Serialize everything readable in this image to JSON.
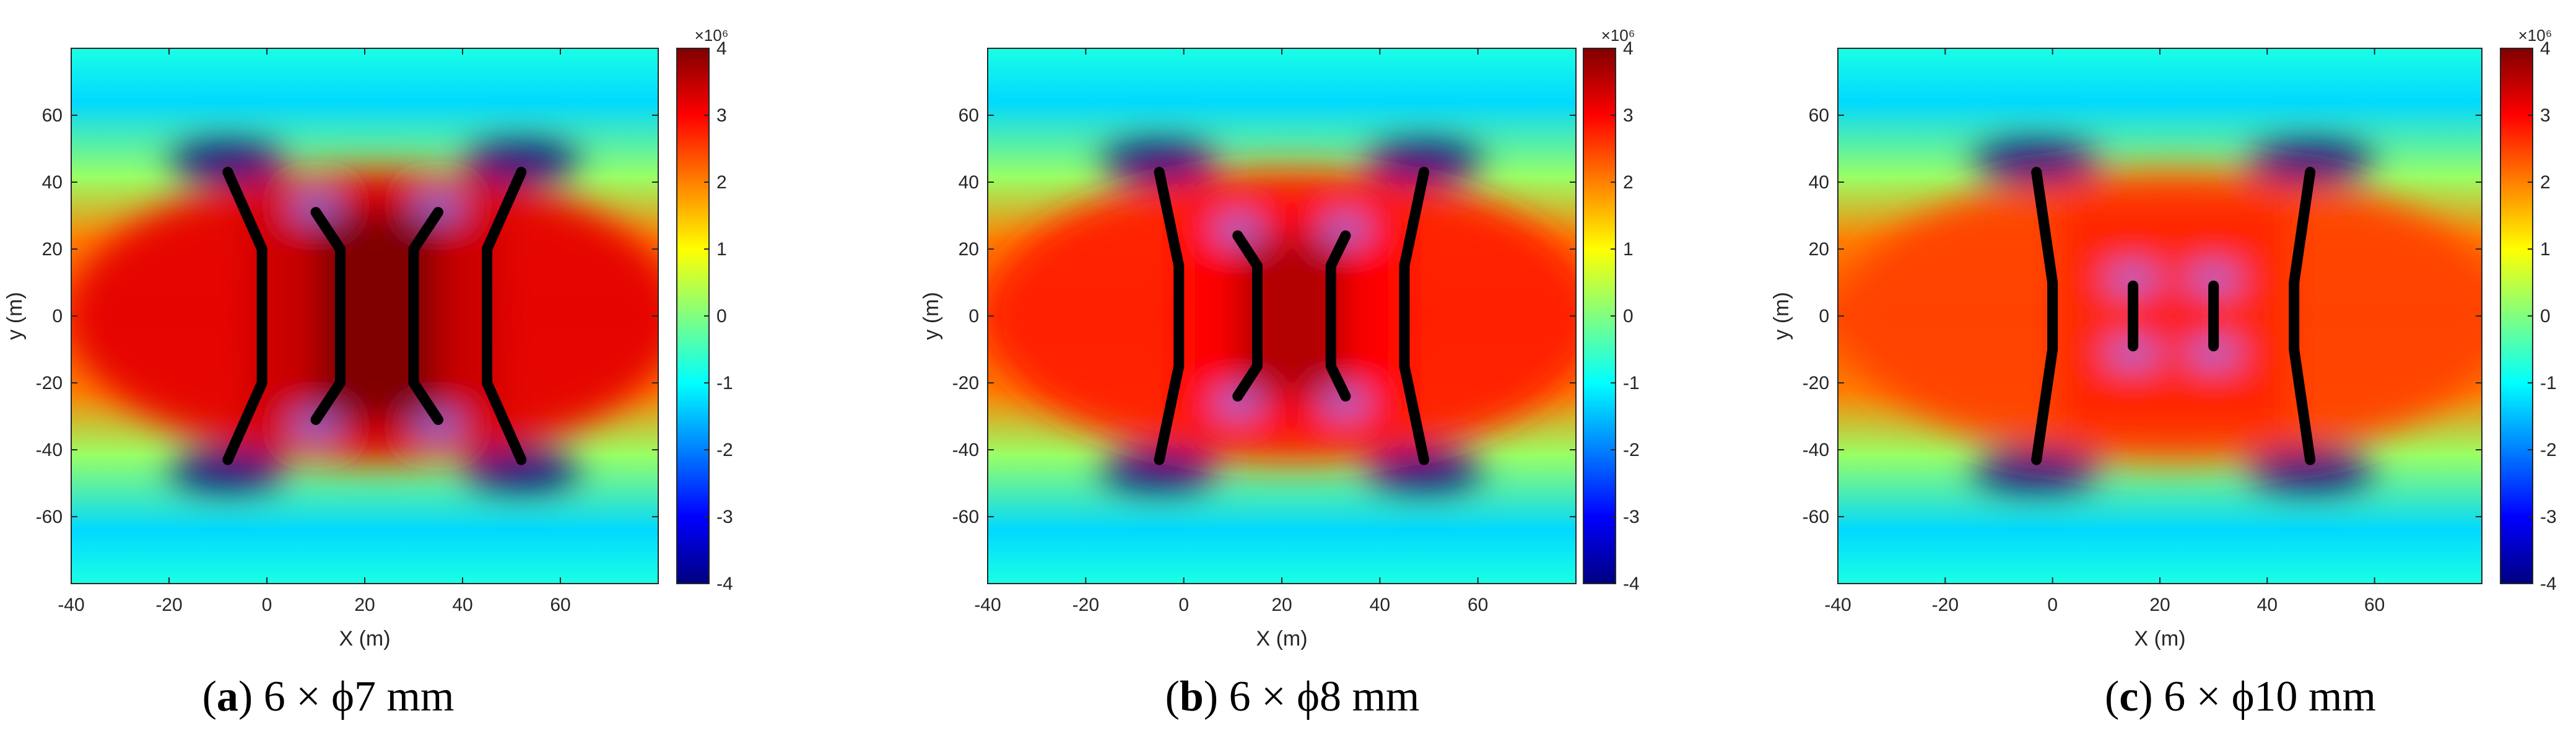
{
  "chart_data": [
    {
      "type": "heatmap",
      "caption_label": "a",
      "caption_text": "6 × ϕ7 mm",
      "xlabel": "X (m)",
      "ylabel": "y (m)",
      "xlim": [
        -40,
        80
      ],
      "ylim": [
        -80,
        80
      ],
      "xticks": [
        -40,
        -20,
        0,
        20,
        40,
        60
      ],
      "yticks": [
        -60,
        -40,
        -20,
        0,
        20,
        40,
        60
      ],
      "colorbar": {
        "range": [
          -4,
          4
        ],
        "ticks": [
          -4,
          -3,
          -2,
          -1,
          0,
          1,
          2,
          3,
          4
        ],
        "exponent_label": "×10⁶",
        "colormap": "jet"
      },
      "field_level_inside_fractures": 4,
      "field_level_outer_region": 3.2,
      "fractures": [
        {
          "name": "outer-left",
          "points": [
            [
              -8,
              43
            ],
            [
              -1,
              20
            ],
            [
              -1,
              -20
            ],
            [
              -8,
              -43
            ]
          ]
        },
        {
          "name": "inner-left",
          "points": [
            [
              10,
              31
            ],
            [
              15,
              20
            ],
            [
              15,
              -20
            ],
            [
              10,
              -31
            ]
          ]
        },
        {
          "name": "inner-right",
          "points": [
            [
              35,
              31
            ],
            [
              30,
              20
            ],
            [
              30,
              -20
            ],
            [
              35,
              -31
            ]
          ]
        },
        {
          "name": "outer-right",
          "points": [
            [
              52,
              43
            ],
            [
              45,
              20
            ],
            [
              45,
              -20
            ],
            [
              52,
              -43
            ]
          ]
        }
      ]
    },
    {
      "type": "heatmap",
      "caption_label": "b",
      "caption_text": "6 × ϕ8 mm",
      "xlabel": "X (m)",
      "ylabel": "y (m)",
      "xlim": [
        -40,
        80
      ],
      "ylim": [
        -80,
        80
      ],
      "xticks": [
        -40,
        -20,
        0,
        20,
        40,
        60
      ],
      "yticks": [
        -60,
        -40,
        -20,
        0,
        20,
        40,
        60
      ],
      "colorbar": {
        "range": [
          -4,
          4
        ],
        "ticks": [
          -4,
          -3,
          -2,
          -1,
          0,
          1,
          2,
          3,
          4
        ],
        "exponent_label": "×10⁶",
        "colormap": "jet"
      },
      "field_level_inside_fractures": 3.6,
      "field_level_outer_region": 2.8,
      "fractures": [
        {
          "name": "outer-left",
          "points": [
            [
              -5,
              43
            ],
            [
              -1,
              15
            ],
            [
              -1,
              -15
            ],
            [
              -5,
              -43
            ]
          ]
        },
        {
          "name": "inner-left",
          "points": [
            [
              11,
              24
            ],
            [
              15,
              15
            ],
            [
              15,
              -15
            ],
            [
              11,
              -24
            ]
          ]
        },
        {
          "name": "inner-right",
          "points": [
            [
              33,
              24
            ],
            [
              30,
              15
            ],
            [
              30,
              -15
            ],
            [
              33,
              -24
            ]
          ]
        },
        {
          "name": "outer-right",
          "points": [
            [
              49,
              43
            ],
            [
              45,
              15
            ],
            [
              45,
              -15
            ],
            [
              49,
              -43
            ]
          ]
        }
      ]
    },
    {
      "type": "heatmap",
      "caption_label": "c",
      "caption_text": "6 × ϕ10 mm",
      "xlabel": "X (m)",
      "ylabel": "y (m)",
      "xlim": [
        -40,
        80
      ],
      "ylim": [
        -80,
        80
      ],
      "xticks": [
        -40,
        -20,
        0,
        20,
        40,
        60
      ],
      "yticks": [
        -60,
        -40,
        -20,
        0,
        20,
        40,
        60
      ],
      "colorbar": {
        "range": [
          -4,
          4
        ],
        "ticks": [
          -4,
          -3,
          -2,
          -1,
          0,
          1,
          2,
          3,
          4
        ],
        "exponent_label": "×10⁶",
        "colormap": "jet"
      },
      "field_level_inside_fractures": 2.8,
      "field_level_outer_region": 2.5,
      "fractures": [
        {
          "name": "outer-left",
          "points": [
            [
              -3,
              43
            ],
            [
              0,
              10
            ],
            [
              0,
              -10
            ],
            [
              -3,
              -43
            ]
          ]
        },
        {
          "name": "inner-left",
          "points": [
            [
              15,
              9
            ],
            [
              15,
              -9
            ]
          ]
        },
        {
          "name": "inner-right",
          "points": [
            [
              30,
              9
            ],
            [
              30,
              -9
            ]
          ]
        },
        {
          "name": "outer-right",
          "points": [
            [
              48,
              43
            ],
            [
              45,
              10
            ],
            [
              45,
              -10
            ],
            [
              48,
              -43
            ]
          ]
        }
      ]
    }
  ]
}
